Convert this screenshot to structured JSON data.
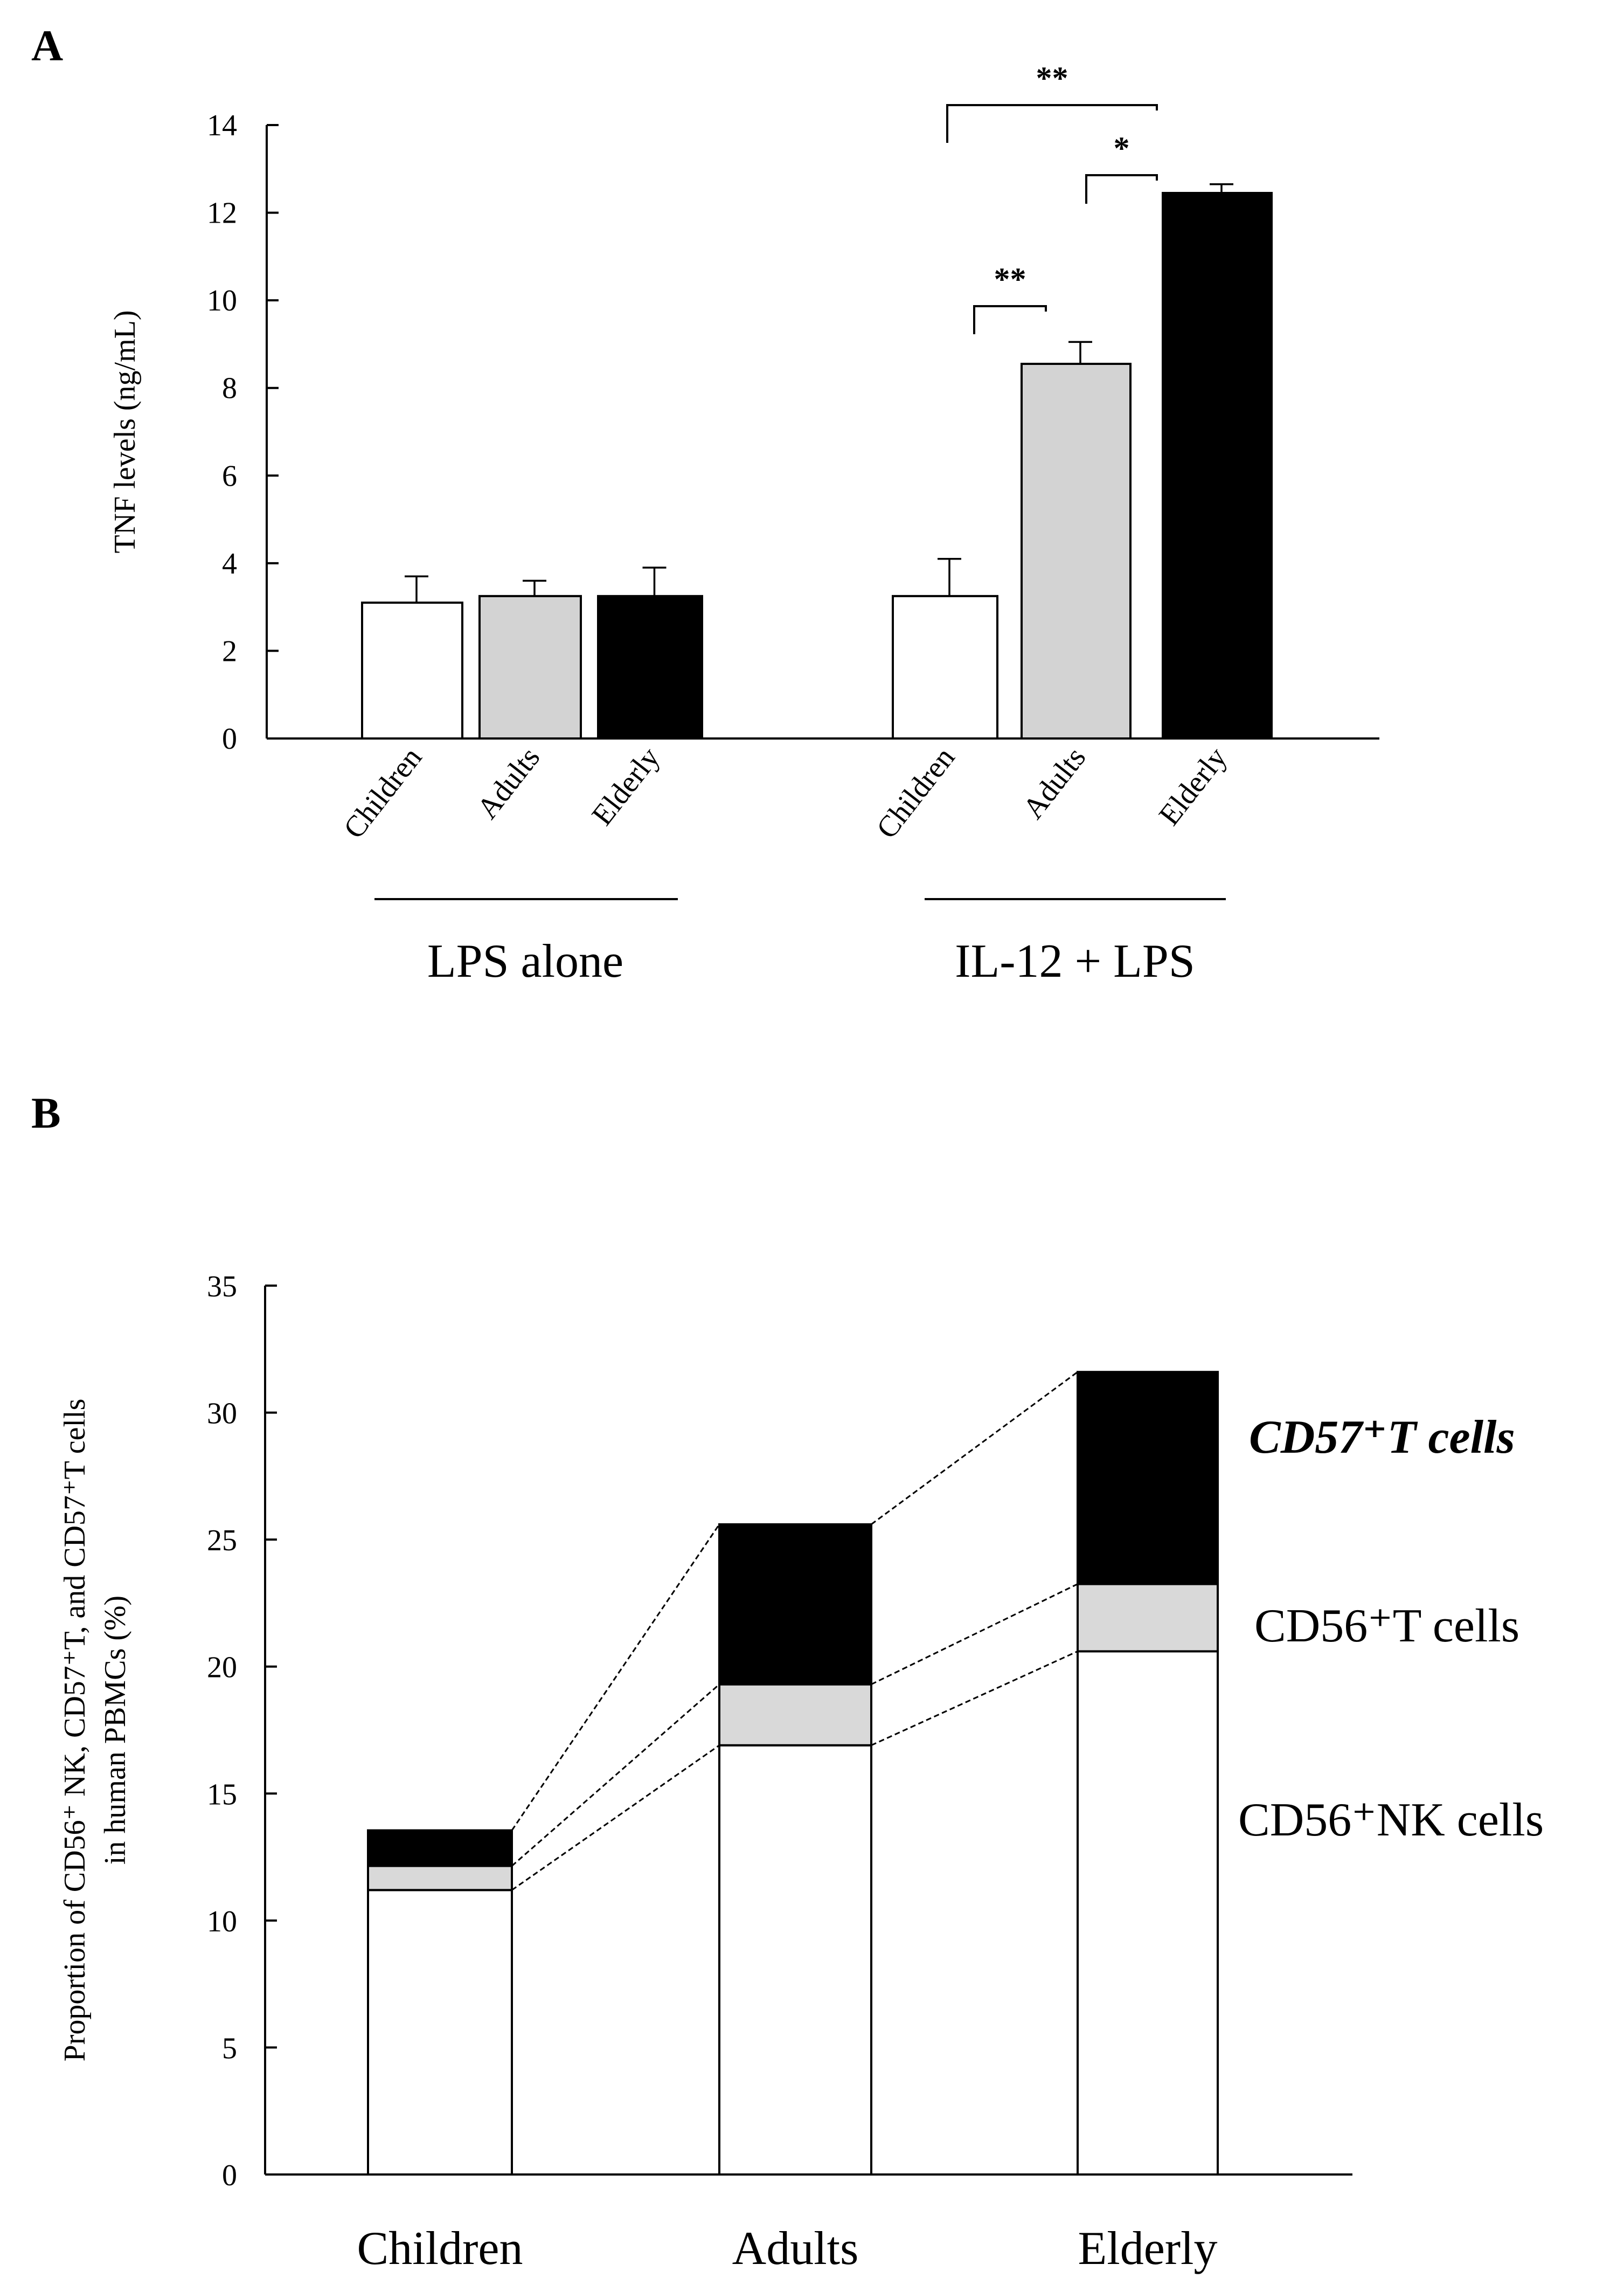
{
  "panel_a": {
    "letter": "A"
  },
  "panel_b": {
    "letter": "B"
  },
  "colors": {
    "children": "#ffffff",
    "adults": "#d3d3d3",
    "elderly": "#000000",
    "nk": "#ffffff",
    "cd56t": "#d9d9d9",
    "cd57t": "#000000"
  },
  "chart_data": [
    {
      "id": "A",
      "type": "bar",
      "title": "",
      "xlabel": "",
      "ylabel": "TNF levels (ng/mL)",
      "ylim": [
        0,
        14
      ],
      "yticks": [
        0,
        2,
        4,
        6,
        8,
        10,
        12,
        14
      ],
      "groups": [
        {
          "label": "LPS alone",
          "categories": [
            "Children",
            "Adults",
            "Elderly"
          ],
          "values": [
            3.1,
            3.25,
            3.25
          ],
          "errors": [
            0.6,
            0.35,
            0.65
          ]
        },
        {
          "label": "IL-12 + LPS",
          "categories": [
            "Children",
            "Adults",
            "Elderly"
          ],
          "values": [
            3.25,
            8.55,
            12.45
          ],
          "errors": [
            0.85,
            0.5,
            0.2
          ]
        }
      ],
      "significance": [
        {
          "group": 1,
          "from": 0,
          "to": 1,
          "label": "**"
        },
        {
          "group": 1,
          "from": 1,
          "to": 2,
          "label": "*"
        },
        {
          "group": 1,
          "from": 0,
          "to": 2,
          "label": "**"
        }
      ]
    },
    {
      "id": "B",
      "type": "bar",
      "stacked": true,
      "title": "",
      "xlabel": "",
      "ylabel_line1": "Proportion of CD56⁺ NK, CD57⁺T, and CD57⁺T cells",
      "ylabel_line2": "in human PBMCs (%)",
      "ylim": [
        0,
        35
      ],
      "yticks": [
        0,
        5,
        10,
        15,
        20,
        25,
        30,
        35
      ],
      "categories": [
        "Children",
        "Adults",
        "Elderly"
      ],
      "series": [
        {
          "name": "CD56⁺NK cells",
          "values": [
            11.2,
            16.9,
            20.6
          ]
        },
        {
          "name": "CD56⁺T cells",
          "values": [
            0.95,
            2.4,
            2.65
          ]
        },
        {
          "name": "CD57⁺T cells",
          "values": [
            1.4,
            6.3,
            8.35
          ]
        }
      ]
    }
  ]
}
